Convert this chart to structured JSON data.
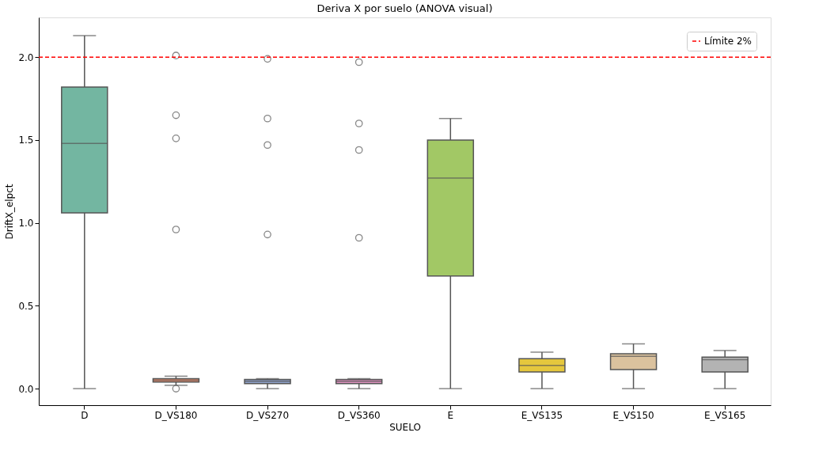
{
  "chart_data": {
    "type": "box",
    "title": "Deriva X por suelo (ANOVA visual)",
    "xlabel": "SUELO",
    "ylabel": "DriftX_elpct",
    "categories": [
      "D",
      "D_VS180",
      "D_VS270",
      "D_VS360",
      "E",
      "E_VS135",
      "E_VS150",
      "E_VS165"
    ],
    "colors": [
      "#73b6a1",
      "#e98d6b",
      "#8d9fc6",
      "#d88fbb",
      "#a2c865",
      "#e5c73d",
      "#dbc29e",
      "#b3b3b3"
    ],
    "boxes": [
      {
        "low": 0.0,
        "q1": 1.06,
        "median": 1.48,
        "q3": 1.82,
        "high": 2.13
      },
      {
        "low": 0.02,
        "q1": 0.04,
        "median": 0.05,
        "q3": 0.06,
        "high": 0.075,
        "outliers": [
          0.0,
          0.96,
          1.51,
          1.65,
          2.01
        ]
      },
      {
        "low": 0.0,
        "q1": 0.03,
        "median": 0.045,
        "q3": 0.055,
        "high": 0.06,
        "outliers": [
          0.93,
          1.47,
          1.63,
          1.99
        ]
      },
      {
        "low": 0.0,
        "q1": 0.03,
        "median": 0.045,
        "q3": 0.055,
        "high": 0.06,
        "outliers": [
          0.91,
          1.44,
          1.6,
          1.97
        ]
      },
      {
        "low": 0.0,
        "q1": 0.68,
        "median": 1.27,
        "q3": 1.5,
        "high": 1.63
      },
      {
        "low": 0.0,
        "q1": 0.1,
        "median": 0.14,
        "q3": 0.18,
        "high": 0.22
      },
      {
        "low": 0.0,
        "q1": 0.115,
        "median": 0.195,
        "q3": 0.21,
        "high": 0.27
      },
      {
        "low": 0.0,
        "q1": 0.1,
        "median": 0.175,
        "q3": 0.19,
        "high": 0.23
      }
    ],
    "ylim": [
      -0.1,
      2.24
    ],
    "yticks": [
      {
        "value": 0,
        "label": "0.0"
      },
      0.5,
      {
        "value": 1,
        "label": "1.0"
      },
      1.5,
      {
        "value": 2,
        "label": "2.0"
      }
    ],
    "ref_lines": [
      {
        "axis": "y",
        "value": 2.0,
        "label": "Límite 2%",
        "color": "#ff0000",
        "line_style": "dashed"
      }
    ],
    "legend": "top right",
    "grid": false
  }
}
